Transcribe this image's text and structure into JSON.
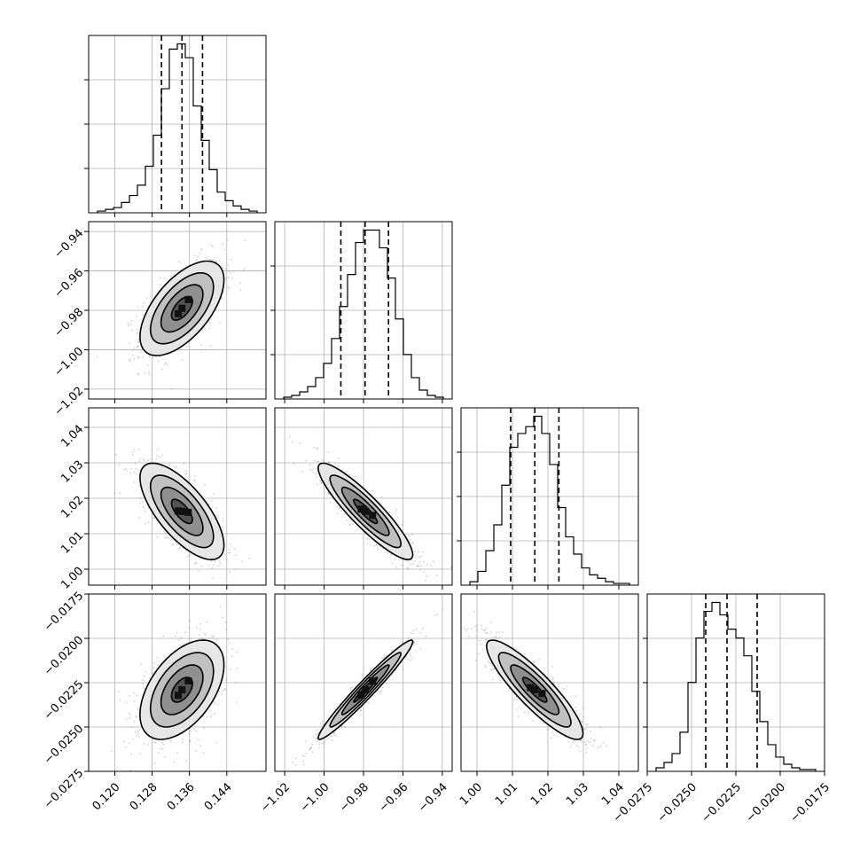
{
  "chart_data": {
    "type": "corner",
    "description_free": true,
    "parameters": [
      {
        "range": [
          0.1144,
          0.1524
        ],
        "ticks": [
          0.12,
          0.128,
          0.136,
          0.144
        ],
        "tick_labels": [
          "0.120",
          "0.128",
          "0.136",
          "0.144"
        ],
        "quantiles": [
          0.13,
          0.1344,
          0.1388
        ],
        "mean": 0.1344,
        "sd": 0.0045,
        "hist_counts": [
          1,
          2,
          3,
          6,
          10,
          16,
          27,
          45,
          72,
          95,
          98,
          90,
          62,
          42,
          25,
          12,
          7,
          4,
          2,
          1
        ]
      },
      {
        "range": [
          -1.025,
          -0.935
        ],
        "ticks": [
          -1.02,
          -1.0,
          -0.98,
          -0.96,
          -0.94
        ],
        "tick_labels": [
          "−1.02",
          "−1.00",
          "−0.98",
          "−0.96",
          "−0.94"
        ],
        "quantiles": [
          -0.9915,
          -0.9792,
          -0.9673
        ],
        "mean": -0.979,
        "sd": 0.012,
        "hist_counts": [
          1,
          2,
          4,
          7,
          12,
          20,
          34,
          52,
          70,
          88,
          95,
          95,
          85,
          68,
          45,
          25,
          12,
          5,
          2,
          1
        ]
      },
      {
        "range": [
          0.9955,
          1.0455
        ],
        "ticks": [
          1.0,
          1.01,
          1.02,
          1.03,
          1.04
        ],
        "tick_labels": [
          "1.00",
          "1.01",
          "1.02",
          "1.03",
          "1.04"
        ],
        "quantiles": [
          1.0095,
          1.0163,
          1.0231
        ],
        "mean": 1.0163,
        "sd": 0.0068,
        "hist_counts": [
          2,
          8,
          20,
          35,
          58,
          80,
          88,
          92,
          98,
          88,
          70,
          45,
          28,
          18,
          10,
          6,
          4,
          2,
          1,
          1
        ]
      },
      {
        "range": [
          -0.0275,
          -0.0175
        ],
        "ticks": [
          -0.0275,
          -0.025,
          -0.0225,
          -0.02,
          -0.0175
        ],
        "tick_labels": [
          "−0.0275",
          "−0.0250",
          "−0.0225",
          "−0.0200",
          "−0.0175"
        ],
        "quantiles": [
          -0.0242,
          -0.023,
          -0.0213
        ],
        "mean": -0.0229,
        "sd": 0.0014,
        "hist_counts": [
          2,
          5,
          10,
          22,
          50,
          75,
          90,
          95,
          88,
          80,
          75,
          65,
          45,
          28,
          15,
          8,
          4,
          2,
          1,
          1
        ]
      }
    ],
    "correlations": [
      [
        1.0,
        0.6,
        -0.7,
        0.5
      ],
      [
        0.6,
        1.0,
        -0.9,
        0.97
      ],
      [
        -0.7,
        -0.9,
        1.0,
        -0.88
      ],
      [
        0.5,
        0.97,
        -0.88,
        1.0
      ]
    ],
    "contour_levels_sigma": [
      0.5,
      1.0,
      1.5,
      2.0
    ],
    "grid": true,
    "colors": {
      "line": "#000000",
      "scatter": "#777777",
      "grid": "#b0b0b0"
    }
  }
}
